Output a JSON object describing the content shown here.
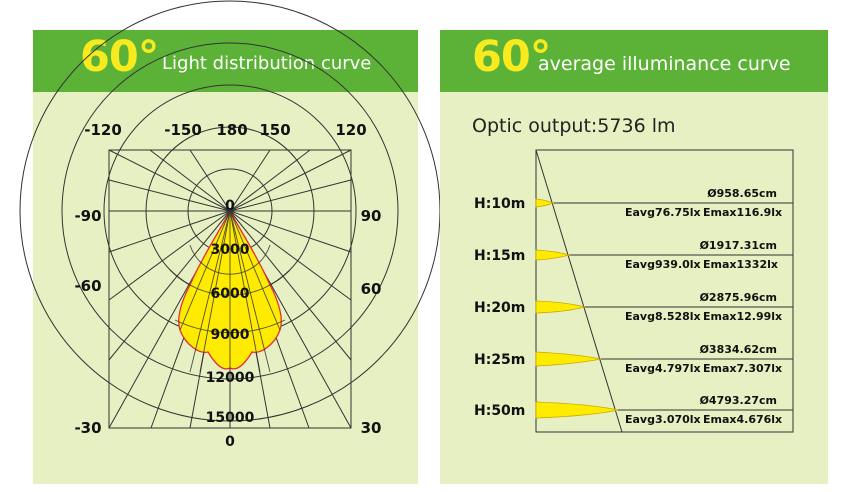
{
  "left_panel": {
    "angle_text": "60°",
    "title": "Light distribution curve",
    "angle_labels": {
      "top": [
        "-120",
        "-150",
        "180",
        "150",
        "120"
      ],
      "left": [
        "-90",
        "-60",
        "-30"
      ],
      "right": [
        "90",
        "60",
        "30"
      ],
      "center_top": "0",
      "bottom_center": "0"
    },
    "radial_labels": [
      "3000",
      "6000",
      "9000",
      "12000",
      "15000"
    ]
  },
  "right_panel": {
    "angle_text": "60°",
    "title": "average illuminance curve",
    "optic_output": "Optic output:5736 lm",
    "rows": [
      {
        "h": "H:10m",
        "diameter": "Ø958.65cm",
        "eavg": "Eavg76.75lx",
        "emax": "Emax116.9lx"
      },
      {
        "h": "H:15m",
        "diameter": "Ø1917.31cm",
        "eavg": "Eavg939.0lx",
        "emax": "Emax1332lx"
      },
      {
        "h": "H:20m",
        "diameter": "Ø2875.96cm",
        "eavg": "Eavg8.528lx",
        "emax": "Emax12.99lx"
      },
      {
        "h": "H:25m",
        "diameter": "Ø3834.62cm",
        "eavg": "Eavg4.797lx",
        "emax": "Emax7.307lx"
      },
      {
        "h": "H:50m",
        "diameter": "Ø4793.27cm",
        "eavg": "Eavg3.070lx",
        "emax": "Emax4.676lx"
      }
    ]
  },
  "chart_data": [
    {
      "type": "polar",
      "title": "Light distribution curve",
      "beam_angle_deg": 60,
      "radial_ticks": [
        0,
        3000,
        6000,
        9000,
        12000,
        15000
      ],
      "angle_ticks_deg": [
        -120,
        -150,
        180,
        150,
        120,
        -90,
        90,
        -60,
        60,
        -30,
        30,
        0
      ],
      "curve_color": "#ffeb00",
      "curve_outline_color": "#e0303a"
    },
    {
      "type": "table",
      "title": "average illuminance curve",
      "optic_output_lm": 5736,
      "columns": [
        "H",
        "diameter",
        "Eavg",
        "Emax"
      ],
      "rows": [
        [
          "H:10m",
          "Ø958.65cm",
          "Eavg76.75lx",
          "Emax116.9lx"
        ],
        [
          "H:15m",
          "Ø1917.31cm",
          "Eavg939.0lx",
          "Emax1332lx"
        ],
        [
          "H:20m",
          "Ø2875.96cm",
          "Eavg8.528lx",
          "Emax12.99lx"
        ],
        [
          "H:25m",
          "Ø3834.62cm",
          "Eavg4.797lx",
          "Emax7.307lx"
        ],
        [
          "H:50m",
          "Ø4793.27cm",
          "Eavg3.070lx",
          "Emax4.676lx"
        ]
      ]
    }
  ],
  "colors": {
    "panel_bg": "#e6f0c2",
    "banner": "#5cb236",
    "accent_yellow": "#f7ea1e",
    "beam_fill": "#ffeb00",
    "beam_outline": "#e0303a"
  }
}
